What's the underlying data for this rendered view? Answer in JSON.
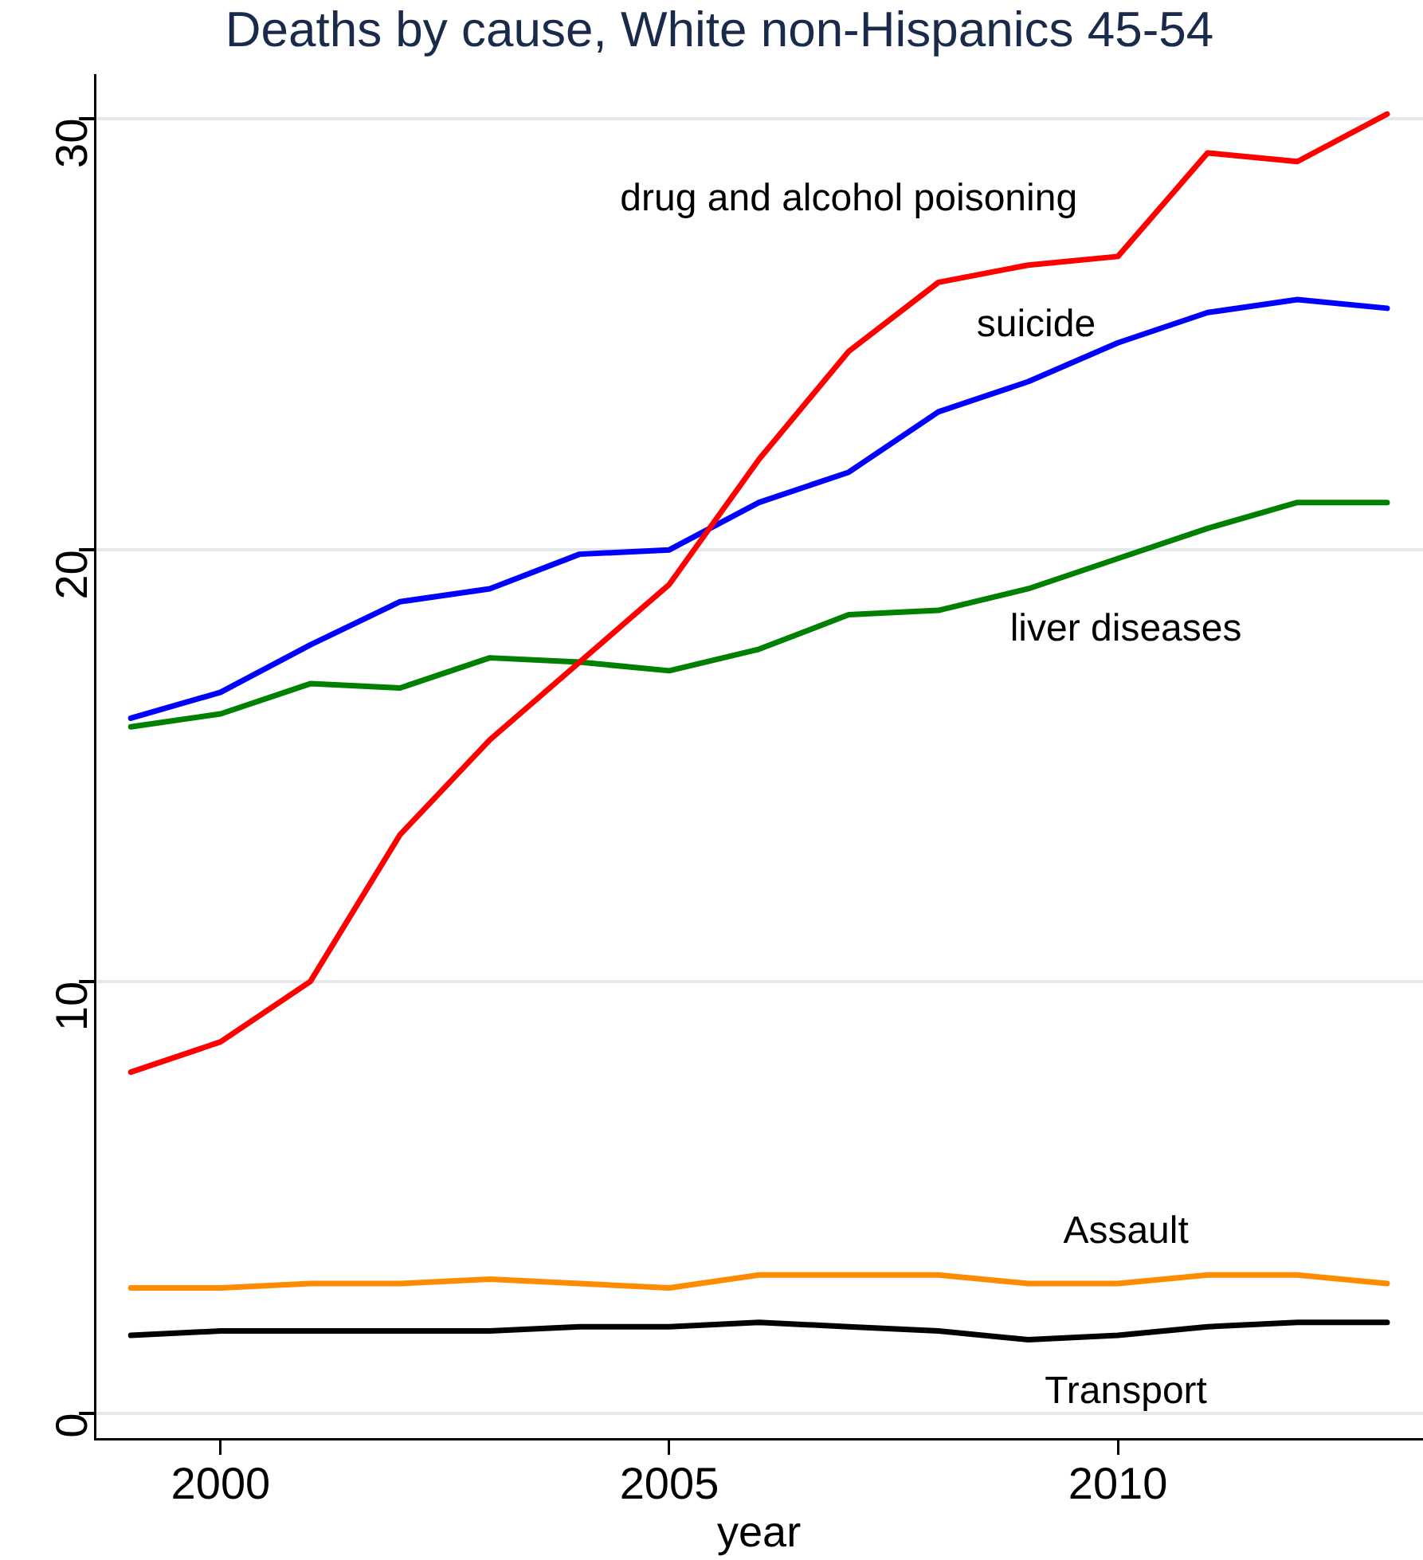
{
  "chart_data": {
    "type": "line",
    "title": "Deaths by cause, White non-Hispanics 45-54",
    "xlabel": "year",
    "x": [
      1999,
      2000,
      2001,
      2002,
      2003,
      2004,
      2005,
      2006,
      2007,
      2008,
      2009,
      2010,
      2011,
      2012,
      2013
    ],
    "xlim": [
      1998.6,
      2013.4
    ],
    "xticks": [
      2000,
      2005,
      2010
    ],
    "ylim": [
      -0.6,
      31
    ],
    "yticks": [
      0,
      10,
      20,
      30
    ],
    "grid": "y",
    "legend": false,
    "marker": "none",
    "line_style": "solid",
    "series": [
      {
        "name": "drug and alcohol poisoning",
        "color": "#ff0000",
        "values": [
          7.9,
          8.6,
          10.0,
          13.4,
          15.6,
          17.4,
          19.2,
          22.1,
          24.6,
          26.2,
          26.6,
          26.8,
          29.2,
          29.0,
          30.1
        ]
      },
      {
        "name": "suicide",
        "color": "#0000ff",
        "values": [
          16.1,
          16.7,
          17.8,
          18.8,
          19.1,
          19.9,
          20.0,
          21.1,
          21.8,
          23.2,
          23.9,
          24.8,
          25.5,
          25.8,
          25.6
        ]
      },
      {
        "name": "liver diseases",
        "color": "#008000",
        "values": [
          15.9,
          16.2,
          16.9,
          16.8,
          17.5,
          17.4,
          17.2,
          17.7,
          18.5,
          18.6,
          19.1,
          19.8,
          20.5,
          21.1,
          21.1
        ]
      },
      {
        "name": "Assault",
        "color": "#ff8c00",
        "values": [
          2.9,
          2.9,
          3.0,
          3.0,
          3.1,
          3.0,
          2.9,
          3.2,
          3.2,
          3.2,
          3.0,
          3.0,
          3.2,
          3.2,
          3.0
        ]
      },
      {
        "name": "Transport",
        "color": "#000000",
        "values": [
          1.8,
          1.9,
          1.9,
          1.9,
          1.9,
          2.0,
          2.0,
          2.1,
          2.0,
          1.9,
          1.7,
          1.8,
          2.0,
          2.1,
          2.1
        ]
      }
    ]
  }
}
